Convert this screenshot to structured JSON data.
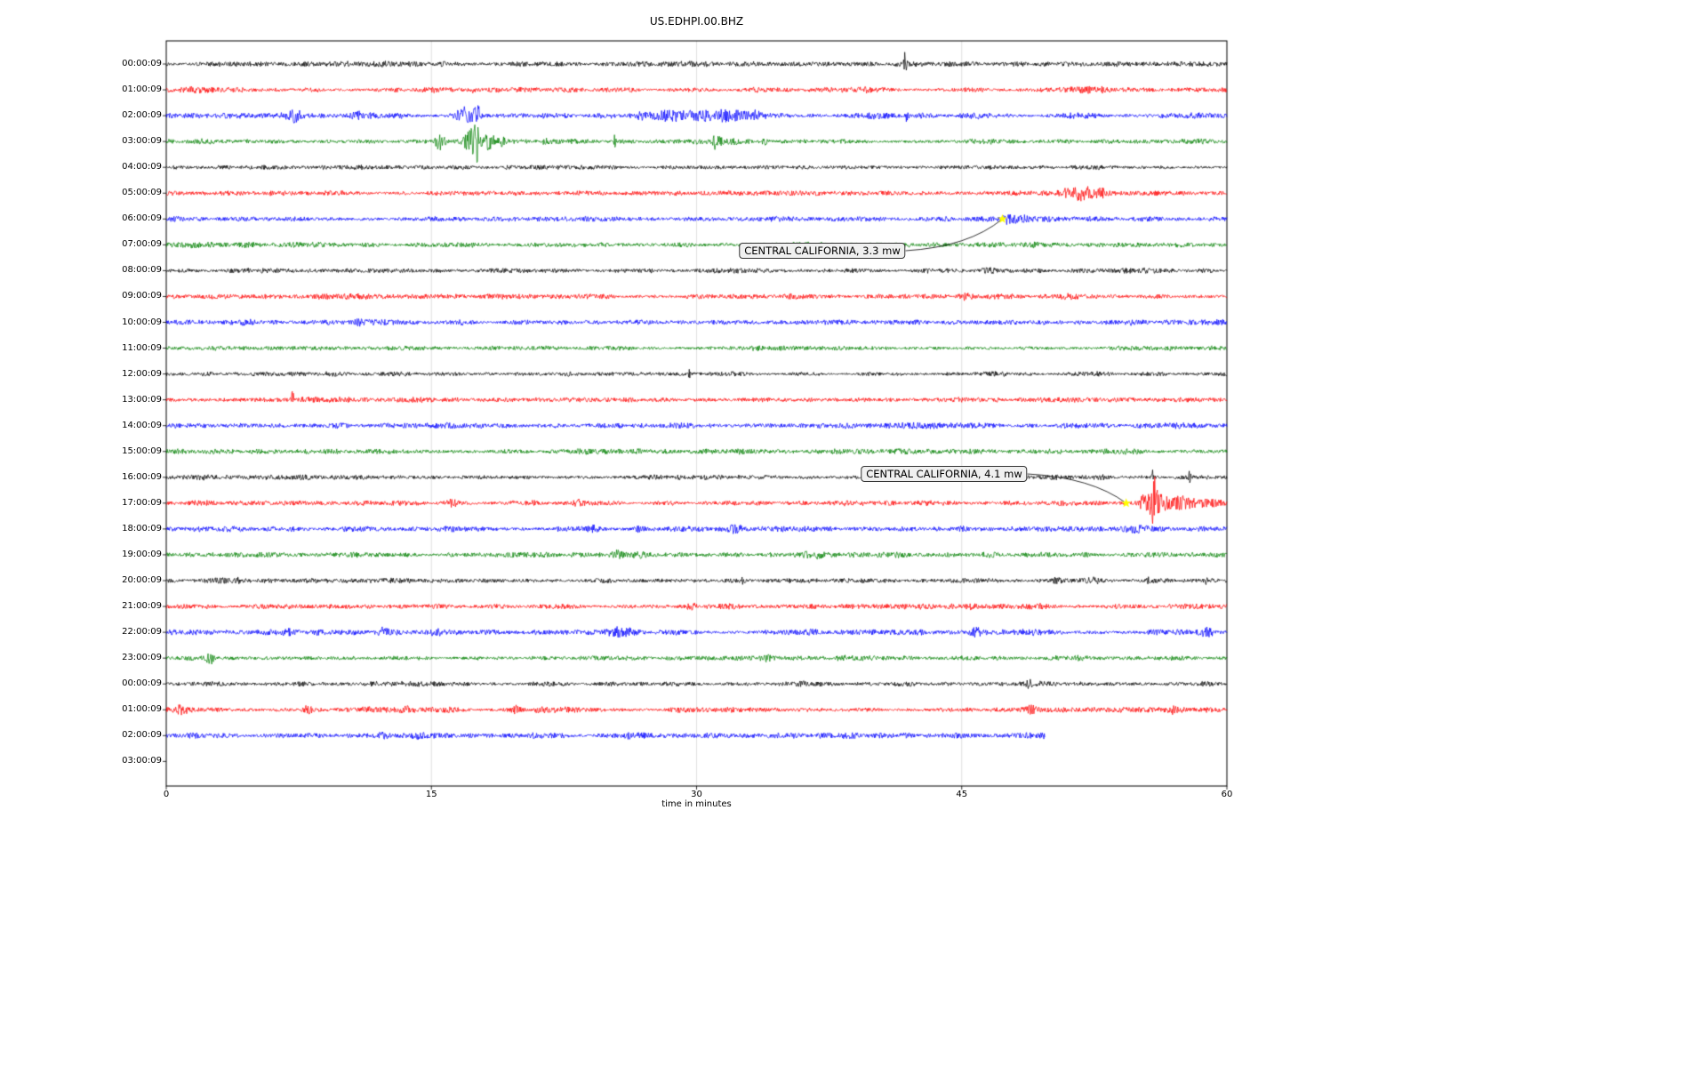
{
  "chart_data": {
    "type": "line",
    "title": "US.EDHPI.00.BHZ",
    "xlabel": "time in minutes",
    "xlim": [
      0,
      60
    ],
    "x_ticks": [
      0,
      15,
      30,
      45,
      60
    ],
    "grid_x": [
      15,
      30,
      45
    ],
    "grid_on": true,
    "legend_position": "none",
    "grid_color": "#d9d9d9",
    "marker_color": "#ffff00",
    "trace_colors": {
      "black": "#000000",
      "red": "#ff0000",
      "blue": "#0000ff",
      "green": "#008000"
    },
    "rows": [
      {
        "label": "00:00:09",
        "color": "black",
        "amp": 2.4,
        "end": 60,
        "bursts": [
          [
            41.8,
            0.08,
            14
          ],
          [
            9.3,
            0.06,
            5
          ],
          [
            15.7,
            0.3,
            1.2
          ]
        ]
      },
      {
        "label": "01:00:09",
        "color": "red",
        "amp": 2.4,
        "end": 60,
        "bursts": [
          [
            51.5,
            1.2,
            2.5
          ],
          [
            17.4,
            0.1,
            4
          ]
        ]
      },
      {
        "label": "02:00:09",
        "color": "blue",
        "amp": 2.6,
        "end": 60,
        "bursts": [
          [
            7.3,
            0.3,
            6
          ],
          [
            10.8,
            0.2,
            3
          ],
          [
            16.9,
            0.5,
            9
          ],
          [
            17.6,
            0.15,
            12
          ],
          [
            26.8,
            0.3,
            3
          ],
          [
            28.5,
            1.5,
            3.5
          ],
          [
            31.5,
            1.2,
            3.5
          ],
          [
            33.2,
            0.4,
            4
          ],
          [
            41.9,
            0.08,
            9
          ]
        ]
      },
      {
        "label": "03:00:09",
        "color": "green",
        "amp": 2.4,
        "end": 60,
        "bursts": [
          [
            15.5,
            0.25,
            9
          ],
          [
            17.3,
            0.4,
            12
          ],
          [
            17.55,
            0.08,
            26
          ],
          [
            18.3,
            0.3,
            8
          ],
          [
            19.0,
            0.2,
            5
          ],
          [
            21.5,
            0.2,
            3
          ],
          [
            25.4,
            0.07,
            10
          ],
          [
            31.1,
            0.3,
            7
          ],
          [
            33.9,
            0.2,
            4
          ]
        ]
      },
      {
        "label": "04:00:09",
        "color": "black",
        "amp": 2.0,
        "end": 60,
        "bursts": []
      },
      {
        "label": "05:00:09",
        "color": "red",
        "amp": 2.2,
        "end": 60,
        "bursts": [
          [
            50.8,
            0.4,
            4
          ],
          [
            51.8,
            0.5,
            7
          ],
          [
            52.8,
            0.4,
            4
          ]
        ]
      },
      {
        "label": "06:00:09",
        "color": "blue",
        "amp": 2.3,
        "end": 60,
        "bursts": [
          [
            47.6,
            0.25,
            4
          ],
          [
            48.3,
            0.5,
            2.5
          ],
          [
            49.5,
            1.5,
            0.8
          ],
          [
            0.5,
            0.3,
            1.5
          ]
        ]
      },
      {
        "label": "07:00:09",
        "color": "green",
        "amp": 2.2,
        "end": 60,
        "bursts": [
          [
            1.5,
            1.5,
            1.2
          ],
          [
            4.5,
            0.5,
            1.5
          ]
        ]
      },
      {
        "label": "08:00:09",
        "color": "black",
        "amp": 2.2,
        "end": 60,
        "bursts": [
          [
            46.5,
            0.5,
            1.5
          ]
        ]
      },
      {
        "label": "09:00:09",
        "color": "red",
        "amp": 2.3,
        "end": 60,
        "bursts": [
          [
            45.2,
            0.3,
            2
          ]
        ]
      },
      {
        "label": "10:00:09",
        "color": "blue",
        "amp": 2.5,
        "end": 60,
        "bursts": [
          [
            4.5,
            0.3,
            2
          ],
          [
            11,
            0.3,
            2
          ]
        ]
      },
      {
        "label": "11:00:09",
        "color": "green",
        "amp": 2.1,
        "end": 60,
        "bursts": []
      },
      {
        "label": "12:00:09",
        "color": "black",
        "amp": 2.0,
        "end": 60,
        "bursts": [
          [
            29.6,
            0.06,
            5
          ]
        ]
      },
      {
        "label": "13:00:09",
        "color": "red",
        "amp": 2.2,
        "end": 60,
        "bursts": [
          [
            7.15,
            0.05,
            16
          ]
        ]
      },
      {
        "label": "14:00:09",
        "color": "blue",
        "amp": 2.5,
        "end": 60,
        "bursts": [
          [
            18,
            0.2,
            2
          ],
          [
            22,
            0.2,
            2
          ],
          [
            27,
            0.2,
            2
          ]
        ]
      },
      {
        "label": "15:00:09",
        "color": "green",
        "amp": 2.4,
        "end": 60,
        "bursts": []
      },
      {
        "label": "16:00:09",
        "color": "black",
        "amp": 2.2,
        "end": 60,
        "bursts": [
          [
            52.9,
            0.1,
            4
          ],
          [
            55.8,
            0.06,
            11
          ],
          [
            57.9,
            0.06,
            9
          ]
        ]
      },
      {
        "label": "17:00:09",
        "color": "red",
        "amp": 2.3,
        "end": 60,
        "bursts": [
          [
            16.2,
            0.3,
            3
          ],
          [
            23.3,
            0.3,
            2.5
          ],
          [
            55.3,
            0.3,
            6
          ],
          [
            55.95,
            0.45,
            20
          ],
          [
            55.9,
            0.1,
            10
          ],
          [
            57.3,
            0.8,
            6
          ],
          [
            59,
            1,
            2.5
          ]
        ]
      },
      {
        "label": "18:00:09",
        "color": "blue",
        "amp": 2.5,
        "end": 60,
        "bursts": [
          [
            24.2,
            0.3,
            3
          ],
          [
            26.8,
            0.3,
            3
          ],
          [
            32.2,
            0.4,
            3
          ],
          [
            45,
            0.3,
            2
          ],
          [
            55,
            0.8,
            2
          ]
        ]
      },
      {
        "label": "19:00:09",
        "color": "green",
        "amp": 2.3,
        "end": 60,
        "bursts": [
          [
            25.6,
            0.4,
            3
          ],
          [
            26.8,
            0.5,
            3
          ],
          [
            36.6,
            0.8,
            2.5
          ],
          [
            41.5,
            0.4,
            1.5
          ],
          [
            46.6,
            0.4,
            2.5
          ]
        ]
      },
      {
        "label": "20:00:09",
        "color": "black",
        "amp": 2.2,
        "end": 60,
        "bursts": [
          [
            4,
            0.3,
            2
          ],
          [
            32.6,
            0.25,
            3
          ],
          [
            50.3,
            0.3,
            2
          ],
          [
            52.5,
            0.3,
            2
          ],
          [
            55.6,
            0.1,
            3
          ],
          [
            58.8,
            0.1,
            4
          ]
        ]
      },
      {
        "label": "21:00:09",
        "color": "red",
        "amp": 2.4,
        "end": 60,
        "bursts": [
          [
            29.8,
            0.3,
            3
          ],
          [
            45.5,
            0.3,
            1.5
          ]
        ]
      },
      {
        "label": "22:00:09",
        "color": "blue",
        "amp": 2.6,
        "end": 60,
        "bursts": [
          [
            7,
            0.3,
            3
          ],
          [
            12.3,
            0.25,
            5
          ],
          [
            15.2,
            0.3,
            4
          ],
          [
            25.8,
            1,
            4
          ],
          [
            36.5,
            0.4,
            2
          ],
          [
            45.8,
            0.3,
            3
          ],
          [
            58.8,
            0.3,
            4
          ]
        ]
      },
      {
        "label": "23:00:09",
        "color": "green",
        "amp": 2.2,
        "end": 60,
        "bursts": [
          [
            2.5,
            0.25,
            6
          ],
          [
            34,
            0.3,
            1.5
          ]
        ]
      },
      {
        "label": "00:00:09",
        "color": "black",
        "amp": 2.2,
        "end": 60,
        "bursts": [
          [
            36,
            0.3,
            1.5
          ],
          [
            48.8,
            0.2,
            3
          ],
          [
            58.8,
            0.2,
            3
          ]
        ]
      },
      {
        "label": "01:00:09",
        "color": "red",
        "amp": 2.4,
        "end": 60,
        "bursts": [
          [
            0.8,
            0.5,
            4
          ],
          [
            8,
            0.3,
            3
          ],
          [
            13.5,
            0.2,
            2.5
          ],
          [
            19.8,
            0.2,
            4
          ],
          [
            48.9,
            0.25,
            4
          ],
          [
            56.9,
            0.3,
            3
          ]
        ]
      },
      {
        "label": "02:00:09",
        "color": "blue",
        "amp": 2.6,
        "end": 49.7,
        "bursts": [
          [
            1.5,
            0.5,
            1.5
          ],
          [
            12.3,
            0.3,
            3
          ],
          [
            14.2,
            0.4,
            2.5
          ]
        ]
      },
      {
        "label": "03:00:09",
        "color": "green",
        "amp": 0,
        "end": 0,
        "bursts": []
      }
    ],
    "annotations": [
      {
        "text": "CENTRAL CALIFORNIA, 3.3 mw",
        "row": 6,
        "minute": 47.3,
        "label_cx": 925,
        "label_cy": 282
      },
      {
        "text": "CENTRAL CALIFORNIA, 4.1 mw",
        "row": 17,
        "minute": 54.3,
        "label_cx": 1062,
        "label_cy": 533
      }
    ]
  }
}
